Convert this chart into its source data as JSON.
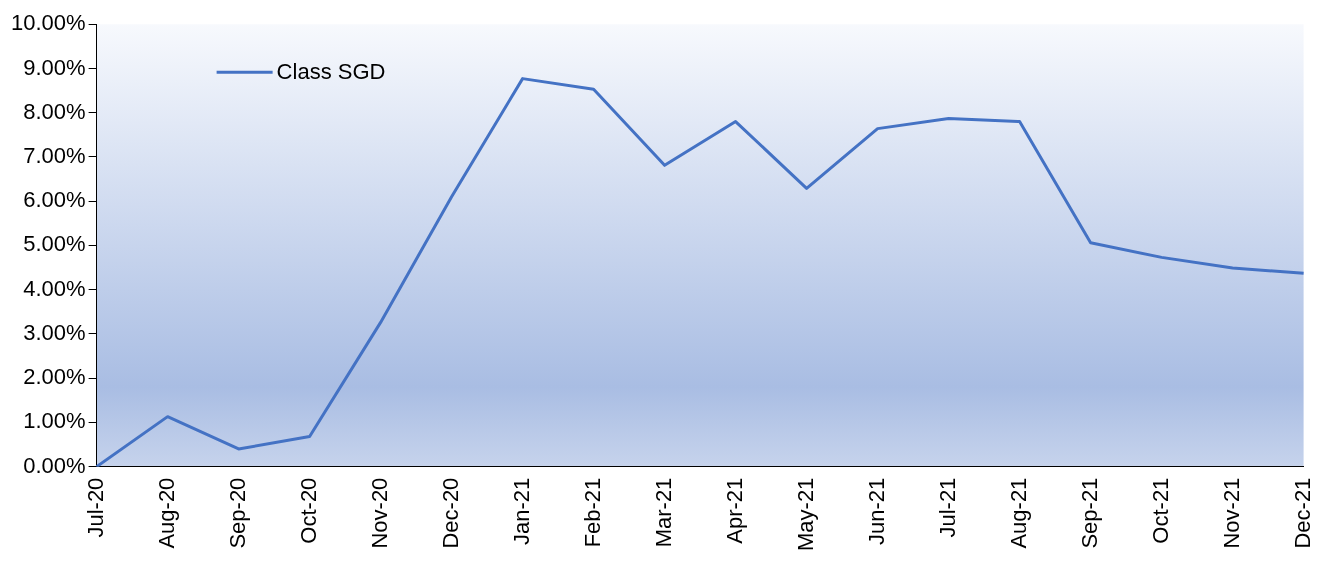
{
  "chart_data": {
    "type": "line",
    "categories": [
      "Jul-20",
      "Aug-20",
      "Sep-20",
      "Oct-20",
      "Nov-20",
      "Dec-20",
      "Jan-21",
      "Feb-21",
      "Mar-21",
      "Apr-21",
      "May-21",
      "Jun-21",
      "Jul-21",
      "Aug-21",
      "Sep-21",
      "Oct-21",
      "Nov-21",
      "Dec-21"
    ],
    "series": [
      {
        "name": "Class SGD",
        "color": "#4472c4",
        "values": [
          0,
          1.13,
          0.4,
          0.68,
          3.26,
          6.1,
          8.77,
          8.53,
          6.81,
          7.8,
          6.29,
          7.64,
          7.87,
          7.8,
          5.06,
          4.73,
          4.49,
          4.37
        ]
      }
    ],
    "ylim": [
      0,
      10
    ],
    "yticks": [
      {
        "value": 0,
        "label": "0.00%"
      },
      {
        "value": 1,
        "label": "1.00%"
      },
      {
        "value": 2,
        "label": "2.00%"
      },
      {
        "value": 3,
        "label": "3.00%"
      },
      {
        "value": 4,
        "label": "4.00%"
      },
      {
        "value": 5,
        "label": "5.00%"
      },
      {
        "value": 6,
        "label": "6.00%"
      },
      {
        "value": 7,
        "label": "7.00%"
      },
      {
        "value": 8,
        "label": "8.00%"
      },
      {
        "value": 9,
        "label": "9.00%"
      },
      {
        "value": 10,
        "label": "10.00%"
      }
    ],
    "legend": "top left",
    "grid": false,
    "marker": "none",
    "line_style": "solid"
  }
}
